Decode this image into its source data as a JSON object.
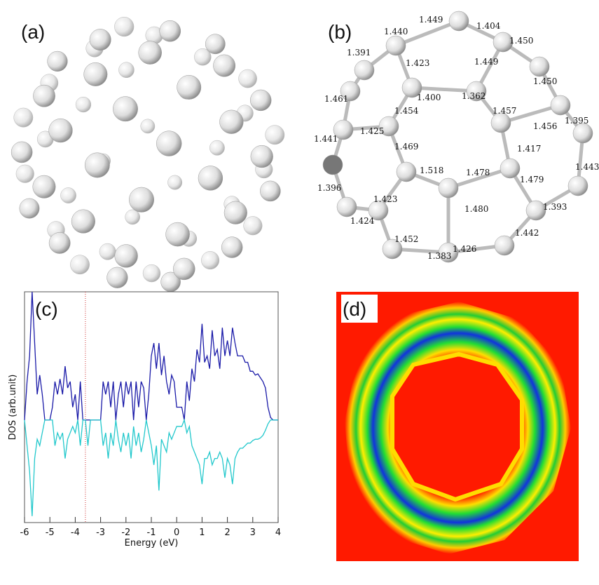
{
  "panels": {
    "a": {
      "label": "(a)"
    },
    "b": {
      "label": "(b)",
      "bond_lengths": [
        "1.449",
        "1.440",
        "1.404",
        "1.450",
        "1.391",
        "1.423",
        "1.449",
        "1.450",
        "1.461",
        "1.400",
        "1.362",
        "1.454",
        "1.457",
        "1.456",
        "1.395",
        "1.425",
        "1.441",
        "1.469",
        "1.417",
        "1.443",
        "1.518",
        "1.478",
        "1.479",
        "1.396",
        "1.423",
        "1.480",
        "1.393",
        "1.424",
        "1.442",
        "1.452",
        "1.426",
        "1.383"
      ]
    },
    "d": {
      "label": "(d)"
    }
  },
  "chart_data": {
    "type": "line",
    "panel_label": "(c)",
    "xlabel": "Energy (eV)",
    "ylabel": "DOS (arb.unit)",
    "xlim": [
      -6,
      4
    ],
    "xticks": [
      -6,
      -5,
      -4,
      -3,
      -2,
      -1,
      0,
      1,
      2,
      3,
      4
    ],
    "ylim": [
      -0.8,
      1
    ],
    "vline": {
      "x": -3.6,
      "color": "#cc3333"
    },
    "x": [
      -6,
      -5.9,
      -5.8,
      -5.7,
      -5.6,
      -5.5,
      -5.4,
      -5.3,
      -5.2,
      -5.1,
      -5,
      -4.9,
      -4.8,
      -4.7,
      -4.6,
      -4.5,
      -4.4,
      -4.3,
      -4.2,
      -4.1,
      -4,
      -3.9,
      -3.8,
      -3.7,
      -3.6,
      -3.5,
      -3.4,
      -3.3,
      -3.2,
      -3.1,
      -3,
      -2.9,
      -2.8,
      -2.7,
      -2.6,
      -2.5,
      -2.4,
      -2.3,
      -2.2,
      -2.1,
      -2,
      -1.9,
      -1.8,
      -1.7,
      -1.6,
      -1.5,
      -1.4,
      -1.3,
      -1.2,
      -1.1,
      -1,
      -0.9,
      -0.8,
      -0.7,
      -0.6,
      -0.5,
      -0.4,
      -0.3,
      -0.2,
      -0.1,
      0,
      0.1,
      0.2,
      0.3,
      0.4,
      0.5,
      0.6,
      0.7,
      0.8,
      0.9,
      1,
      1.1,
      1.2,
      1.3,
      1.4,
      1.5,
      1.6,
      1.7,
      1.8,
      1.9,
      2,
      2.1,
      2.2,
      2.3,
      2.4,
      2.5,
      2.6,
      2.7,
      2.8,
      2.9,
      3,
      3.1,
      3.2,
      3.3,
      3.4,
      3.5,
      3.6,
      3.7,
      3.8,
      3.9,
      4
    ],
    "series": [
      {
        "color": "#1a1aa8",
        "values": [
          0,
          0.3,
          0.5,
          1,
          0.6,
          0.2,
          0.35,
          0.2,
          0,
          0,
          0,
          0.1,
          0.3,
          0.2,
          0.32,
          0.2,
          0.42,
          0.25,
          0.3,
          0.1,
          0.2,
          0,
          0.3,
          0,
          0,
          0,
          0,
          0,
          0,
          0,
          0,
          0.3,
          0.2,
          0.3,
          0.1,
          0.3,
          0,
          0.2,
          0.3,
          0.1,
          0.3,
          0.2,
          0.3,
          0,
          0.3,
          0.1,
          0.3,
          0.25,
          0,
          0.2,
          0.5,
          0.6,
          0.4,
          0.6,
          0.35,
          0.5,
          0.3,
          0.2,
          0.35,
          0.3,
          0.1,
          0.1,
          0.1,
          0,
          0.3,
          0.15,
          0.4,
          0.3,
          0.55,
          0.45,
          0.75,
          0.45,
          0.5,
          0.4,
          0.7,
          0.5,
          0.55,
          0.4,
          0.72,
          0.5,
          0.62,
          0.5,
          0.72,
          0.6,
          0.5,
          0.5,
          0.5,
          0.45,
          0.45,
          0.38,
          0.38,
          0.35,
          0.36,
          0.33,
          0.3,
          0.25,
          0.1,
          0.02,
          0,
          0,
          0
        ]
      },
      {
        "color": "#22c8cc",
        "values": [
          0,
          -0.2,
          -0.4,
          -0.75,
          -0.3,
          -0.15,
          -0.2,
          -0.1,
          0,
          0,
          0,
          0,
          -0.2,
          -0.1,
          -0.15,
          -0.1,
          -0.3,
          -0.15,
          -0.1,
          -0.05,
          -0.1,
          0,
          -0.2,
          0,
          0,
          -0.2,
          0,
          0,
          0,
          0,
          0,
          -0.2,
          -0.1,
          -0.3,
          -0.1,
          -0.2,
          0,
          -0.15,
          -0.25,
          -0.1,
          -0.2,
          -0.1,
          -0.3,
          -0.05,
          -0.2,
          -0.1,
          -0.25,
          -0.15,
          0,
          -0.1,
          -0.2,
          -0.35,
          -0.2,
          -0.55,
          -0.15,
          -0.2,
          -0.25,
          -0.1,
          -0.15,
          -0.1,
          -0.05,
          -0.05,
          -0.05,
          0,
          -0.1,
          -0.05,
          -0.2,
          -0.25,
          -0.3,
          -0.35,
          -0.5,
          -0.3,
          -0.3,
          -0.25,
          -0.35,
          -0.3,
          -0.3,
          -0.25,
          -0.3,
          -0.45,
          -0.3,
          -0.35,
          -0.5,
          -0.3,
          -0.25,
          -0.22,
          -0.22,
          -0.2,
          -0.18,
          -0.18,
          -0.16,
          -0.15,
          -0.15,
          -0.14,
          -0.12,
          -0.08,
          -0.03,
          0,
          0,
          0,
          0
        ]
      }
    ]
  }
}
